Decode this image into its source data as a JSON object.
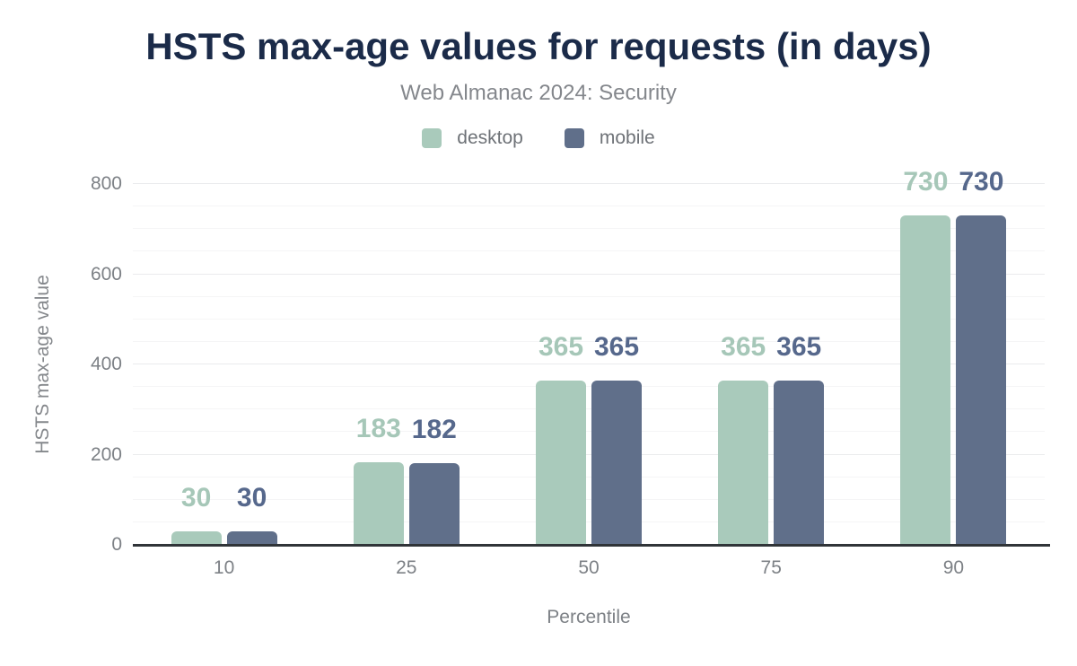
{
  "title": "HSTS max-age values for requests (in days)",
  "subtitle": "Web Almanac 2024: Security",
  "chart_data": {
    "type": "bar",
    "title": "HSTS max-age values for requests (in days)",
    "subtitle": "Web Almanac 2024: Security",
    "categories": [
      "10",
      "25",
      "50",
      "75",
      "90"
    ],
    "series": [
      {
        "name": "desktop",
        "color": "#a9cabb",
        "label_color": "#a6c7b8",
        "values": [
          30,
          183,
          365,
          365,
          730
        ]
      },
      {
        "name": "mobile",
        "color": "#606f8a",
        "label_color": "#56688c",
        "values": [
          30,
          182,
          365,
          365,
          730
        ]
      }
    ],
    "xlabel": "Percentile",
    "ylabel": "HSTS max-age value",
    "ylim": [
      0,
      800
    ],
    "y_ticks": [
      0,
      200,
      400,
      600,
      800
    ],
    "y_minor_step": 50,
    "grid": true,
    "legend_position": "top"
  },
  "colors": {
    "title": "#1b2b49",
    "subtitle": "#84878c",
    "axis_text": "#7d8186",
    "axis_line": "#303438",
    "gridline_major": "#eaebed",
    "gridline_minor": "#f5f5f6",
    "desktop": "#a9cabb",
    "mobile": "#606f8a"
  }
}
